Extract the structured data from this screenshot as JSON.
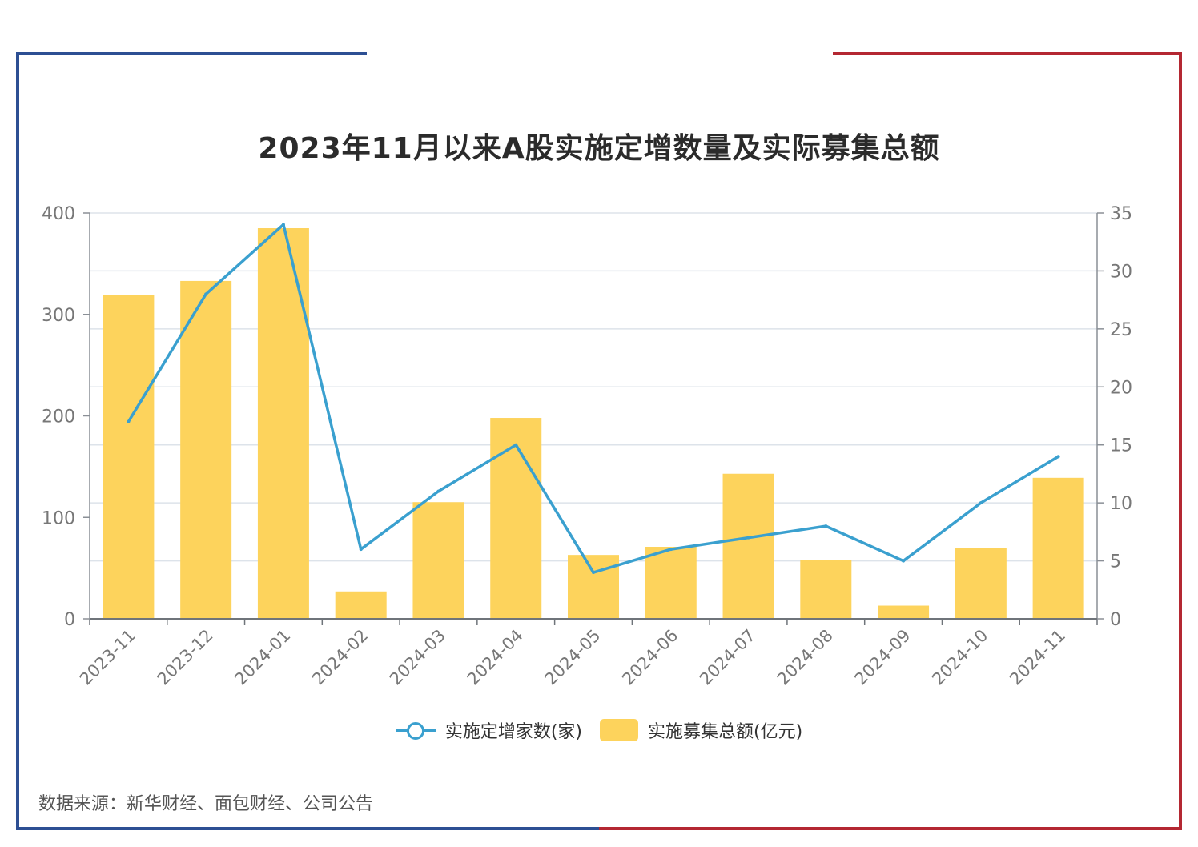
{
  "colors": {
    "bar": "#fdd35c",
    "line": "#3aa0cf",
    "frame_left": "#2d4f93",
    "frame_right": "#b42832",
    "grid": "#dde3ea",
    "axis_text": "#777777"
  },
  "source": "数据来源：新华财经、面包财经、公司公告",
  "chart_data": {
    "type": "bar",
    "title": "2023年11月以来A股实施定增数量及实际募集总额",
    "categories": [
      "2023-11",
      "2023-12",
      "2024-01",
      "2024-02",
      "2024-03",
      "2024-04",
      "2024-05",
      "2024-06",
      "2024-07",
      "2024-08",
      "2024-09",
      "2024-10",
      "2024-11"
    ],
    "series": [
      {
        "name": "实施募集总额(亿元)",
        "type": "bar",
        "axis": "left",
        "values": [
          319,
          333,
          385,
          27,
          115,
          198,
          63,
          71,
          143,
          58,
          13,
          70,
          139
        ]
      },
      {
        "name": "实施定增家数(家)",
        "type": "line",
        "axis": "right",
        "values": [
          17,
          28,
          34,
          6,
          11,
          15,
          4,
          6,
          7,
          8,
          5,
          10,
          14
        ]
      }
    ],
    "left_axis": {
      "min": 0,
      "max": 400,
      "ticks": [
        "0",
        "100",
        "200",
        "300",
        "400"
      ]
    },
    "right_axis": {
      "min": 0,
      "max": 35,
      "ticks": [
        "0",
        "5",
        "10",
        "15",
        "20",
        "25",
        "30",
        "35"
      ]
    },
    "legend": [
      "实施定增家数(家)",
      "实施募集总额(亿元)"
    ],
    "grid": true
  }
}
